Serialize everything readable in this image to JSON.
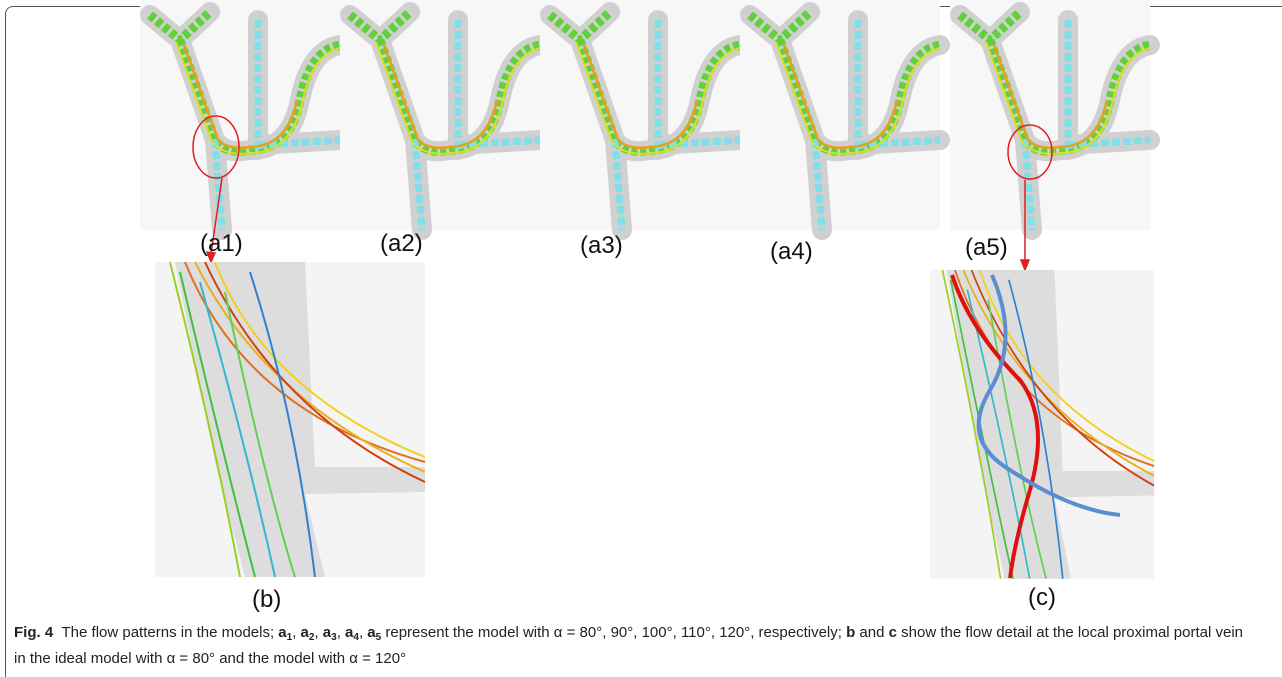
{
  "figure": {
    "panel_labels": [
      "(a1)",
      "(a2)",
      "(a3)",
      "(a4)",
      "(a5)",
      "(b)",
      "(c)"
    ],
    "caption": {
      "label": "Fig. 4",
      "segments": [
        "The flow patterns in the models; ",
        "a",
        "1",
        ", ",
        "a",
        "2",
        ", ",
        "a",
        "3",
        ", ",
        "a",
        "4",
        ", ",
        "a",
        "5",
        " represent the model with α = 80°, 90°, 100°, 110°, 120°, respectively; ",
        "b",
        " and ",
        "c",
        " show the flow detail at the local proximal portal vein in the ideal model with α = 80° and the model with α = 120°"
      ]
    }
  }
}
